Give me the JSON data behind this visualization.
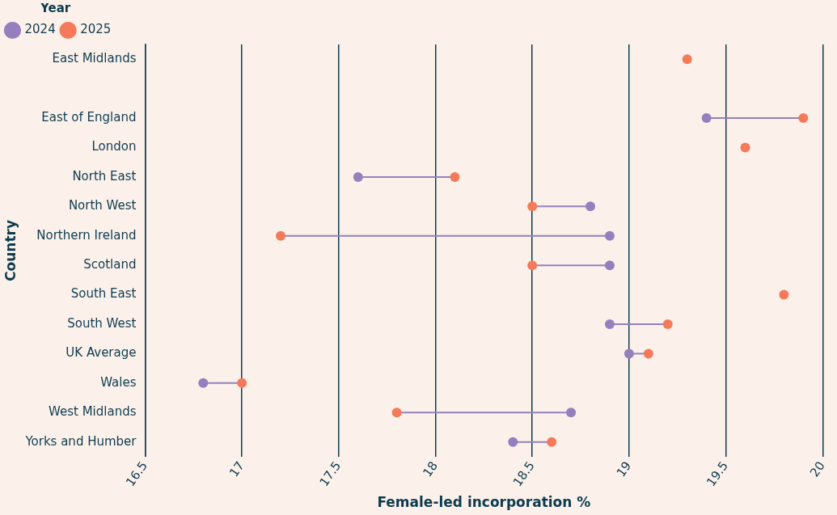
{
  "chart_data": {
    "type": "scatter",
    "orientation": "horizontal",
    "xlabel": "Female-led incorporation %",
    "ylabel": "Country",
    "legend_title": "Year",
    "legend": "top left",
    "grid": "x",
    "marker": "circle",
    "categories": [
      "East Midlands",
      null,
      "East of England",
      "London",
      "North East",
      "North West",
      "Northern Ireland",
      "Scotland",
      "South East",
      "South West",
      "UK Average",
      "Wales",
      "West Midlands",
      "Yorks and Humber"
    ],
    "xlim": [
      16.5,
      20
    ],
    "xticks": [
      16.5,
      17,
      17.5,
      18,
      18.5,
      19,
      19.5,
      20
    ],
    "series": [
      {
        "name": "2024",
        "color": "#9580bd",
        "values": [
          null,
          null,
          19.4,
          null,
          17.6,
          18.8,
          18.9,
          18.9,
          null,
          18.9,
          19.0,
          16.8,
          18.7,
          18.4
        ]
      },
      {
        "name": "2025",
        "color": "#f47a5a",
        "values": [
          19.3,
          null,
          19.9,
          19.6,
          18.1,
          18.5,
          17.2,
          18.5,
          19.8,
          19.2,
          19.1,
          17.0,
          17.8,
          18.6
        ]
      }
    ]
  }
}
